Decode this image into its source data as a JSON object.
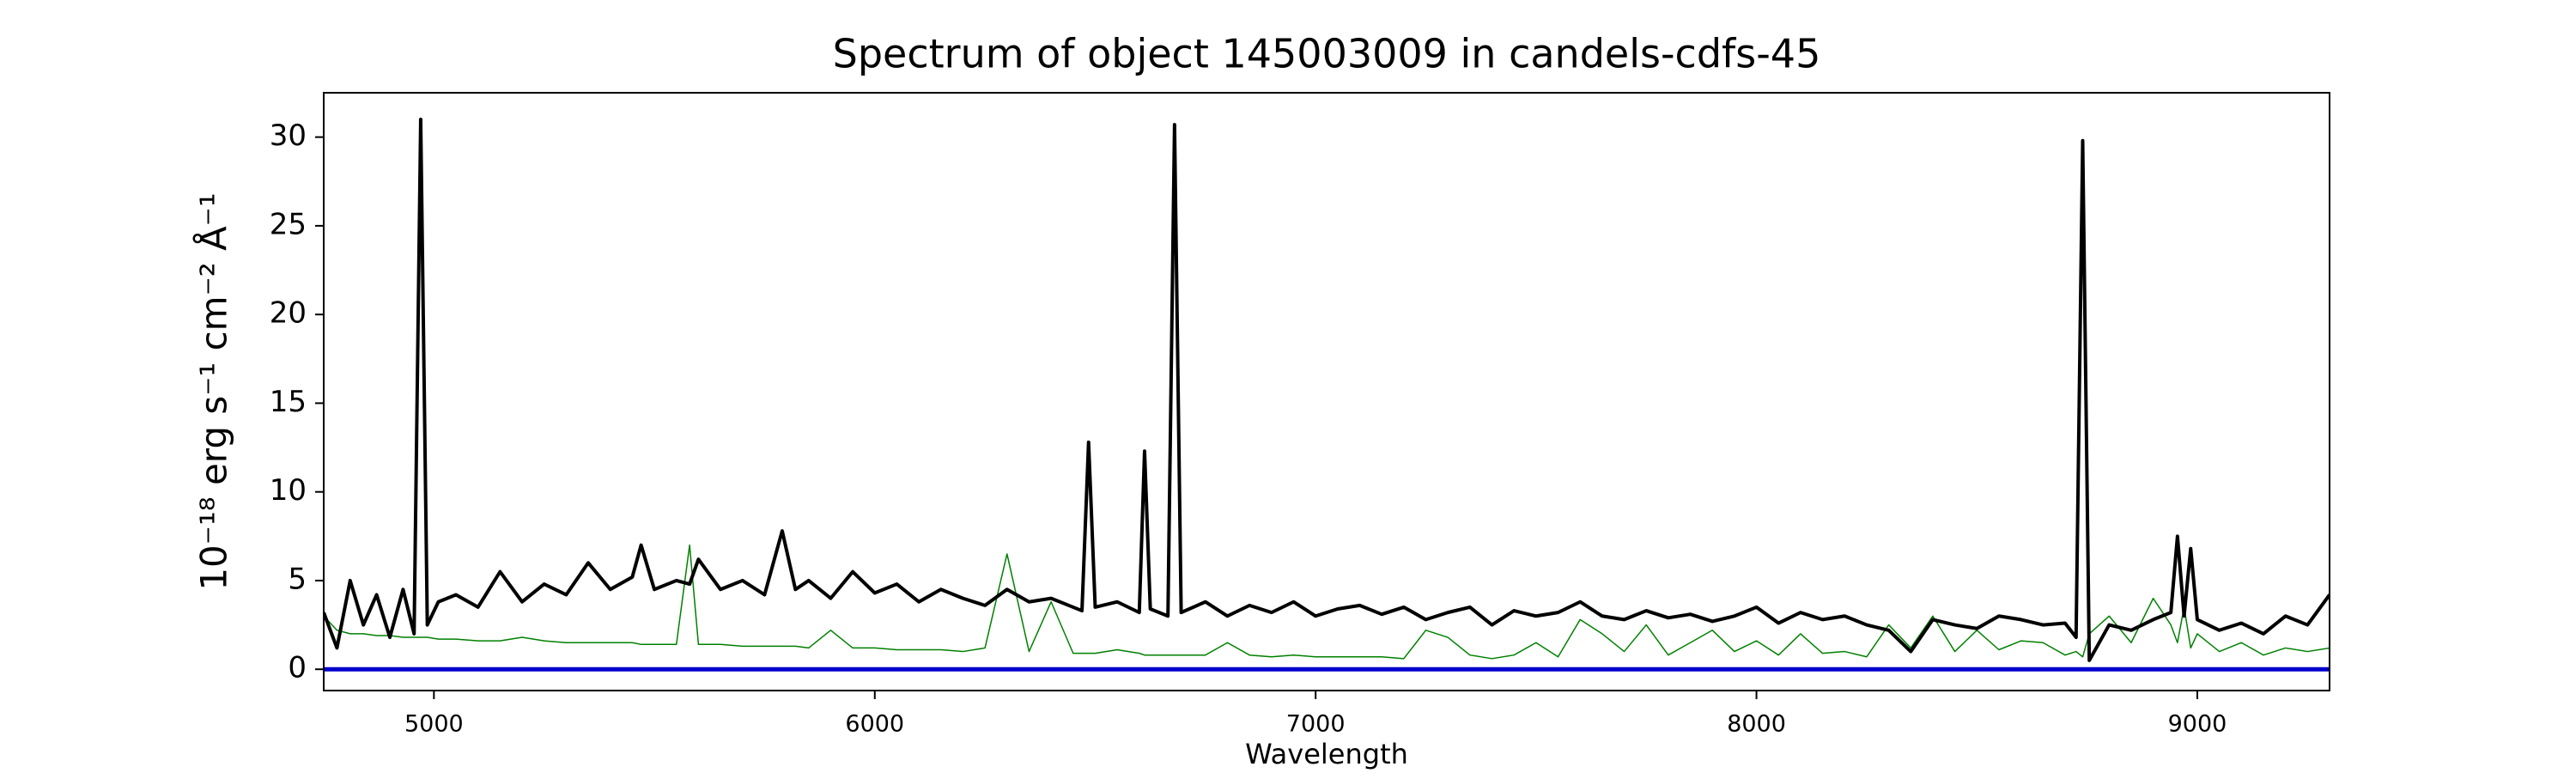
{
  "chart_data": {
    "type": "line",
    "title": "Spectrum of object 145003009 in candels-cdfs-45",
    "xlabel": "Wavelength",
    "ylabel": "10⁻¹⁸ erg s⁻¹ cm⁻² Å⁻¹",
    "xlim": [
      4750,
      9300
    ],
    "ylim": [
      -1.2,
      32.5
    ],
    "xticks": [
      5000,
      6000,
      7000,
      8000,
      9000
    ],
    "yticks": [
      0,
      5,
      10,
      15,
      20,
      25,
      30
    ],
    "grid": false,
    "x": [
      4750,
      4780,
      4810,
      4840,
      4870,
      4900,
      4930,
      4955,
      4970,
      4985,
      5010,
      5050,
      5100,
      5150,
      5200,
      5250,
      5300,
      5350,
      5400,
      5450,
      5470,
      5500,
      5550,
      5580,
      5600,
      5650,
      5700,
      5750,
      5790,
      5820,
      5850,
      5900,
      5950,
      6000,
      6050,
      6100,
      6150,
      6200,
      6250,
      6300,
      6350,
      6400,
      6450,
      6470,
      6485,
      6500,
      6550,
      6600,
      6612,
      6625,
      6665,
      6680,
      6695,
      6750,
      6800,
      6850,
      6900,
      6950,
      7000,
      7050,
      7100,
      7150,
      7200,
      7250,
      7300,
      7350,
      7400,
      7450,
      7500,
      7550,
      7600,
      7650,
      7700,
      7750,
      7800,
      7850,
      7900,
      7950,
      8000,
      8050,
      8100,
      8150,
      8200,
      8250,
      8300,
      8350,
      8400,
      8450,
      8500,
      8550,
      8600,
      8650,
      8700,
      8725,
      8740,
      8755,
      8800,
      8850,
      8900,
      8940,
      8955,
      8970,
      8985,
      9000,
      9050,
      9100,
      9150,
      9200,
      9250,
      9300
    ],
    "series": [
      {
        "color": "#000000",
        "width": 4,
        "values": [
          3.2,
          1.2,
          5.0,
          2.5,
          4.2,
          1.8,
          4.5,
          2.0,
          31.0,
          2.5,
          3.8,
          4.2,
          3.5,
          5.5,
          3.8,
          4.8,
          4.2,
          6.0,
          4.5,
          5.2,
          7.0,
          4.5,
          5.0,
          4.8,
          6.2,
          4.5,
          5.0,
          4.2,
          7.8,
          4.5,
          5.0,
          4.0,
          5.5,
          4.3,
          4.8,
          3.8,
          4.5,
          4.0,
          3.6,
          4.5,
          3.8,
          4.0,
          3.5,
          3.3,
          12.8,
          3.5,
          3.8,
          3.2,
          12.3,
          3.4,
          3.0,
          30.7,
          3.2,
          3.8,
          3.0,
          3.6,
          3.2,
          3.8,
          3.0,
          3.4,
          3.6,
          3.1,
          3.5,
          2.8,
          3.2,
          3.5,
          2.5,
          3.3,
          3.0,
          3.2,
          3.8,
          3.0,
          2.8,
          3.3,
          2.9,
          3.1,
          2.7,
          3.0,
          3.5,
          2.6,
          3.2,
          2.8,
          3.0,
          2.5,
          2.2,
          1.0,
          2.8,
          2.5,
          2.3,
          3.0,
          2.8,
          2.5,
          2.6,
          1.8,
          29.8,
          0.5,
          2.5,
          2.2,
          2.8,
          3.2,
          7.5,
          3.0,
          6.8,
          2.8,
          2.2,
          2.6,
          2.0,
          3.0,
          2.5,
          4.2
        ]
      },
      {
        "color": "#008000",
        "width": 1.5,
        "values": [
          3.0,
          2.2,
          2.0,
          2.0,
          1.9,
          1.9,
          1.8,
          1.8,
          1.8,
          1.8,
          1.7,
          1.7,
          1.6,
          1.6,
          1.8,
          1.6,
          1.5,
          1.5,
          1.5,
          1.5,
          1.4,
          1.4,
          1.4,
          7.0,
          1.4,
          1.4,
          1.3,
          1.3,
          1.3,
          1.3,
          1.2,
          2.2,
          1.2,
          1.2,
          1.1,
          1.1,
          1.1,
          1.0,
          1.2,
          6.5,
          1.0,
          3.8,
          0.9,
          0.9,
          0.9,
          0.9,
          1.1,
          0.9,
          0.8,
          0.8,
          0.8,
          0.8,
          0.8,
          0.8,
          1.5,
          0.8,
          0.7,
          0.8,
          0.7,
          0.7,
          0.7,
          0.7,
          0.6,
          2.2,
          1.8,
          0.8,
          0.6,
          0.8,
          1.5,
          0.7,
          2.8,
          2.0,
          1.0,
          2.5,
          0.8,
          1.5,
          2.2,
          1.0,
          1.6,
          0.8,
          2.0,
          0.9,
          1.0,
          0.7,
          2.5,
          1.2,
          3.0,
          1.0,
          2.2,
          1.1,
          1.6,
          1.5,
          0.8,
          1.0,
          0.7,
          2.0,
          3.0,
          1.5,
          4.0,
          2.5,
          1.5,
          3.5,
          1.2,
          2.0,
          1.0,
          1.5,
          0.8,
          1.2,
          1.0,
          1.2
        ]
      },
      {
        "color": "#0000cc",
        "width": 5,
        "values": [
          0,
          0,
          0,
          0,
          0,
          0,
          0,
          0,
          0,
          0,
          0,
          0,
          0,
          0,
          0,
          0,
          0,
          0,
          0,
          0,
          0,
          0,
          0,
          0,
          0,
          0,
          0,
          0,
          0,
          0,
          0,
          0,
          0,
          0,
          0,
          0,
          0,
          0,
          0,
          0,
          0,
          0,
          0,
          0,
          0,
          0,
          0,
          0,
          0,
          0,
          0,
          0,
          0,
          0,
          0,
          0,
          0,
          0,
          0,
          0,
          0,
          0,
          0,
          0,
          0,
          0,
          0,
          0,
          0,
          0,
          0,
          0,
          0,
          0,
          0,
          0,
          0,
          0,
          0,
          0,
          0,
          0,
          0,
          0,
          0,
          0,
          0,
          0,
          0,
          0,
          0,
          0,
          0,
          0,
          0,
          0,
          0,
          0,
          0,
          0,
          0,
          0,
          0,
          0,
          0,
          0,
          0,
          0,
          0,
          0
        ]
      }
    ]
  }
}
